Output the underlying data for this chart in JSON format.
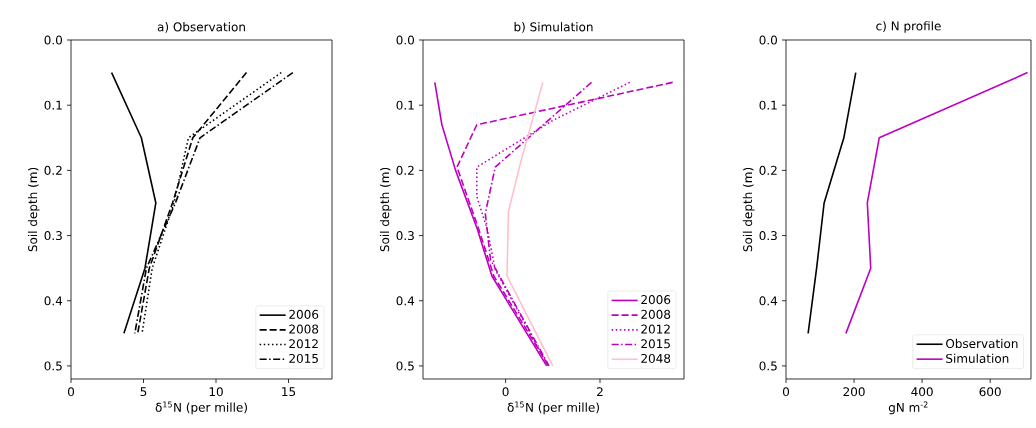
{
  "chart_data": [
    {
      "type": "line",
      "title": "a) Observation",
      "xlabel": "δ$^{15}$N (per mille)",
      "ylabel": "Soil depth (m)",
      "xlim": [
        0,
        18
      ],
      "ylim": [
        0.52,
        0.0
      ],
      "xticks": [
        0,
        5,
        10,
        15
      ],
      "yticks": [
        {
          "value": 0.0,
          "label": "0.0"
        },
        {
          "value": 0.1,
          "label": "0.1"
        },
        {
          "value": 0.2,
          "label": "0.2"
        },
        {
          "value": 0.3,
          "label": "0.3"
        },
        {
          "value": 0.4,
          "label": "0.4"
        },
        {
          "value": 0.5,
          "label": "0.5"
        }
      ],
      "legend": "bottom right",
      "grid": false,
      "marker": "none",
      "series": [
        {
          "name": "2006",
          "color": "#000000",
          "line_style": "solid",
          "x": [
            2.8,
            4.85,
            5.85,
            5.1,
            3.65
          ],
          "values": [
            0.05,
            0.15,
            0.25,
            0.35,
            0.45
          ]
        },
        {
          "name": "2008",
          "color": "#000000",
          "line_style": "dashed",
          "x": [
            12.1,
            8.4,
            7.0,
            5.4,
            4.6
          ],
          "values": [
            0.05,
            0.15,
            0.25,
            0.35,
            0.45
          ]
        },
        {
          "name": "2012",
          "color": "#000000",
          "line_style": "dotted",
          "x": [
            14.5,
            8.1,
            7.1,
            5.6,
            4.9
          ],
          "values": [
            0.05,
            0.15,
            0.25,
            0.35,
            0.45
          ]
        },
        {
          "name": "2015",
          "color": "#000000",
          "line_style": "dashdot",
          "x": [
            15.3,
            8.9,
            7.2,
            5.2,
            4.4
          ],
          "values": [
            0.05,
            0.15,
            0.25,
            0.35,
            0.45
          ]
        }
      ]
    },
    {
      "type": "line",
      "title": "b) Simulation",
      "xlabel": "δ$^{15}$N (per mille)",
      "ylabel": "Soil depth (m)",
      "xlim": [
        -1.75,
        3.78
      ],
      "ylim": [
        0.52,
        0.0
      ],
      "xticks": [
        0,
        2
      ],
      "yticks": [
        {
          "value": 0.0,
          "label": "0.0"
        },
        {
          "value": 0.1,
          "label": "0.1"
        },
        {
          "value": 0.2,
          "label": "0.2"
        },
        {
          "value": 0.3,
          "label": "0.3"
        },
        {
          "value": 0.4,
          "label": "0.4"
        },
        {
          "value": 0.5,
          "label": "0.5"
        }
      ],
      "legend": "bottom right",
      "grid": false,
      "marker": "none",
      "series": [
        {
          "name": "2006",
          "color": "#bf00bf",
          "line_style": "solid",
          "x": [
            -1.5,
            -1.35,
            -1.06,
            -0.6,
            -0.29,
            0.87
          ],
          "values": [
            0.065,
            0.13,
            0.2,
            0.29,
            0.362,
            0.5
          ]
        },
        {
          "name": "2008",
          "color": "#bf00bf",
          "line_style": "dashed",
          "x": [
            3.54,
            -0.61,
            -1.03,
            -0.57,
            -0.25,
            0.91
          ],
          "values": [
            0.065,
            0.13,
            0.195,
            0.29,
            0.362,
            0.5
          ]
        },
        {
          "name": "2012",
          "color": "#bf00bf",
          "line_style": "dotted",
          "x": [
            2.63,
            1.01,
            -0.61,
            -0.61,
            -0.39,
            -0.22,
            0.9
          ],
          "values": [
            0.065,
            0.123,
            0.195,
            0.24,
            0.29,
            0.352,
            0.5
          ]
        },
        {
          "name": "2015",
          "color": "#bf00bf",
          "line_style": "dashdot",
          "x": [
            1.82,
            -0.22,
            -0.43,
            -0.32,
            0.92
          ],
          "values": [
            0.065,
            0.195,
            0.266,
            0.337,
            0.5
          ]
        },
        {
          "name": "2048",
          "color": "#ffc0cb",
          "line_style": "solid",
          "x": [
            0.79,
            0.31,
            0.06,
            0.03,
            1.0
          ],
          "values": [
            0.065,
            0.19,
            0.263,
            0.362,
            0.5
          ]
        }
      ]
    },
    {
      "type": "line",
      "title": "c) N profile",
      "xlabel": "gN m$^{-2}$",
      "ylabel": "Soil depth (m)",
      "xlim": [
        0,
        720
      ],
      "ylim": [
        0.52,
        0.0
      ],
      "xticks": [
        0,
        200,
        400,
        600
      ],
      "yticks": [
        {
          "value": 0.0,
          "label": "0.0"
        },
        {
          "value": 0.1,
          "label": "0.1"
        },
        {
          "value": 0.2,
          "label": "0.2"
        },
        {
          "value": 0.3,
          "label": "0.3"
        },
        {
          "value": 0.4,
          "label": "0.4"
        },
        {
          "value": 0.5,
          "label": "0.5"
        }
      ],
      "legend": "bottom right",
      "grid": false,
      "marker": "none",
      "series": [
        {
          "name": "Observation",
          "color": "#000000",
          "line_style": "solid",
          "x": [
            205,
            170,
            112,
            90,
            65
          ],
          "values": [
            0.05,
            0.15,
            0.25,
            0.35,
            0.45
          ]
        },
        {
          "name": "Simulation",
          "color": "#bf00bf",
          "line_style": "solid",
          "x": [
            710,
            274,
            239,
            249,
            176
          ],
          "values": [
            0.05,
            0.15,
            0.25,
            0.35,
            0.45
          ]
        }
      ]
    }
  ]
}
